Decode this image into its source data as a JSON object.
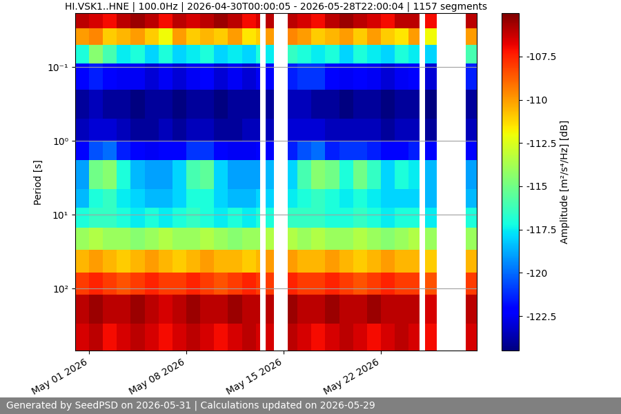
{
  "chart_data": {
    "type": "spectrogram",
    "title": "HI.VSK1..HNE | 100.0Hz | 2026-04-30T00:00:05 - 2026-05-28T22:00:04 | 1157 segments",
    "y_label": "Period [s]",
    "footer": "Generated by SeedPSD on 2026-05-31 | Calculations updated on 2026-05-29",
    "log": "y",
    "grid": true,
    "color": "jet",
    "xlim": [
      "2026-04-30T00:00:05",
      "2026-05-28T22:00:04"
    ],
    "xticks": [
      {
        "value": "2026-05-01",
        "label": "May 01 2026"
      },
      {
        "value": "2026-05-08",
        "label": "May 08 2026"
      },
      {
        "value": "2026-05-15",
        "label": "May 15 2026"
      },
      {
        "value": "2026-05-22",
        "label": "May 22 2026"
      }
    ],
    "ylim": [
      690,
      0.0186
    ],
    "yticks": [
      {
        "value": 0.1,
        "label": "10⁻¹"
      },
      {
        "value": 1,
        "label": "10⁰"
      },
      {
        "value": 10,
        "label": "10¹"
      },
      {
        "value": 100,
        "label": "10²"
      }
    ],
    "time_edges": [
      "2026-04-30T00:00:05",
      "2026-05-01",
      "2026-05-02",
      "2026-05-03",
      "2026-05-04",
      "2026-05-05",
      "2026-05-06",
      "2026-05-07",
      "2026-05-08",
      "2026-05-09",
      "2026-05-10",
      "2026-05-11",
      "2026-05-12",
      "2026-05-13",
      "2026-05-13T08:00",
      "2026-05-13T17:00",
      "2026-05-14T07:00",
      "2026-05-15T07:00",
      "2026-05-16",
      "2026-05-17",
      "2026-05-18",
      "2026-05-19",
      "2026-05-20",
      "2026-05-21",
      "2026-05-22",
      "2026-05-23",
      "2026-05-24",
      "2026-05-24T19:00",
      "2026-05-25T04:00",
      "2026-05-26T01:00",
      "2026-05-28T03:00",
      "2026-05-28T22:00:04"
    ],
    "period_edges": [
      0.0186,
      0.03,
      0.05,
      0.09,
      0.2,
      0.5,
      1.0,
      1.8,
      4.5,
      8,
      15,
      30,
      60,
      120,
      300,
      690
    ],
    "cells": [
      [
        -106,
        -106.5,
        -107,
        -106,
        -105.5,
        -106,
        -107,
        -106,
        -106.5,
        -106,
        -105.5,
        -106,
        -107,
        -106.5,
        null,
        -106,
        null,
        -106,
        -106.5,
        -107,
        -106,
        -105.5,
        -106,
        -106.5,
        -107,
        -106,
        -106,
        null,
        -107,
        null,
        -106
      ],
      [
        -110,
        -109.5,
        -111,
        -110.5,
        -110,
        -111,
        -112,
        -110,
        -111,
        -110.5,
        -111,
        -110,
        -111.5,
        -111,
        null,
        -110,
        null,
        -109.5,
        -110,
        -111,
        -110.5,
        -110,
        -111,
        -110,
        -111,
        -111.5,
        -110,
        null,
        -112,
        null,
        -110
      ],
      [
        -117,
        -114.5,
        -116,
        -117.5,
        -117,
        -118,
        -117,
        -118,
        -117.5,
        -117,
        -118,
        -117.5,
        -118,
        -117,
        null,
        -117.5,
        null,
        -116.5,
        -117,
        -117.5,
        -117,
        -118,
        -117,
        -117.5,
        -118,
        -117,
        -117.5,
        null,
        -118,
        null,
        -116
      ],
      [
        -122,
        -121.5,
        -122,
        -122.5,
        -122.5,
        -123,
        -122.5,
        -123,
        -122.5,
        -122,
        -123,
        -122.5,
        -123,
        -122.5,
        null,
        -122,
        null,
        -121.5,
        -121,
        -121,
        -122,
        -122.5,
        -122,
        -122.5,
        -123,
        -122.5,
        -122,
        null,
        -123,
        null,
        -121.5
      ],
      [
        -124,
        -123.5,
        -124,
        -124,
        -124.5,
        -124,
        -124,
        -124.5,
        -124,
        -124,
        -124.5,
        -124,
        -124,
        -124,
        null,
        -124,
        null,
        -123.5,
        -123.5,
        -124,
        -124,
        -124.5,
        -124,
        -124,
        -124.5,
        -124,
        -124,
        null,
        -124.5,
        null,
        -124
      ],
      [
        -123.5,
        -123,
        -123,
        -123.5,
        -124,
        -124,
        -123.5,
        -124,
        -123.5,
        -123.5,
        -124,
        -124,
        -123.5,
        -123.5,
        null,
        -123.5,
        null,
        -123,
        -123,
        -123,
        -123.5,
        -123.5,
        -123.5,
        -123.5,
        -124,
        -123.5,
        -123.5,
        null,
        -124,
        null,
        -123.5
      ],
      [
        -122,
        -120.5,
        -120,
        -121.5,
        -122,
        -122.5,
        -122,
        -122,
        -121,
        -121,
        -122,
        -122.5,
        -122.5,
        -122,
        null,
        -122,
        null,
        -121.5,
        -120.5,
        -120,
        -121.5,
        -121,
        -121,
        -121.5,
        -122,
        -122,
        -121.5,
        null,
        -122,
        null,
        -122
      ],
      [
        -119,
        -115,
        -114.5,
        -117,
        -118.5,
        -119,
        -119,
        -118,
        -116,
        -115.5,
        -118,
        -119,
        -119,
        -119,
        null,
        -118.5,
        null,
        -118,
        -116,
        -114.5,
        -115,
        -117,
        -115,
        -116.5,
        -118,
        -117,
        -117.5,
        null,
        -118.5,
        null,
        -119
      ],
      [
        -118.5,
        -117,
        -116.5,
        -117.5,
        -118,
        -118.5,
        -118.5,
        -118,
        -117,
        -117,
        -118,
        -118.5,
        -118.5,
        -118,
        null,
        -118,
        null,
        -117.5,
        -117,
        -116.5,
        -117,
        -117.5,
        -117,
        -117.5,
        -118,
        -118,
        -118,
        null,
        -118.5,
        null,
        -118.5
      ],
      [
        -117,
        -116.5,
        -116.5,
        -117,
        -117.5,
        -117,
        -117.5,
        -117,
        -116.5,
        -117,
        -117.5,
        -117,
        -117.5,
        -117,
        null,
        -117,
        null,
        -116.5,
        -116.5,
        -116.5,
        -117,
        -117,
        -116.5,
        -117,
        -117.5,
        -117,
        -117,
        null,
        -117.5,
        null,
        -117
      ],
      [
        -114,
        -113.5,
        -114,
        -114,
        -114.5,
        -114,
        -113.5,
        -114,
        -114,
        -113.5,
        -114,
        -114.5,
        -114,
        -114,
        null,
        -113.5,
        null,
        -113.5,
        -114,
        -113.5,
        -114,
        -114,
        -113.5,
        -114,
        -114.5,
        -114,
        -113.5,
        null,
        -114,
        null,
        -114
      ],
      [
        -110.5,
        -110,
        -110.5,
        -111,
        -110.5,
        -110,
        -110.5,
        -111,
        -110.5,
        -110,
        -110.5,
        -110.5,
        -111,
        -110.5,
        null,
        -110,
        null,
        -110,
        -110.5,
        -110.5,
        -110,
        -110.5,
        -111,
        -110.5,
        -110,
        -110.5,
        -110.5,
        null,
        -111,
        null,
        -110.5
      ],
      [
        -108,
        -107.5,
        -108,
        -108.5,
        -108,
        -107.5,
        -108,
        -108,
        -107.5,
        -108,
        -108.5,
        -108,
        -107.5,
        -108,
        null,
        -108,
        null,
        -107.5,
        -108,
        -108,
        -107.5,
        -108,
        -108.5,
        -108,
        -107.5,
        -108,
        -108,
        null,
        -108.5,
        null,
        -108
      ],
      [
        -106,
        -105.5,
        -106,
        -106,
        -105.5,
        -106,
        -106.5,
        -106,
        -105.5,
        -106,
        -106,
        -105.5,
        -106,
        -106,
        null,
        -106,
        null,
        -105.5,
        -106,
        -106,
        -105.5,
        -106,
        -106,
        -105.5,
        -106,
        -106,
        -106,
        null,
        -106.5,
        null,
        -106
      ],
      [
        -106.5,
        -106,
        -107,
        -106.5,
        -106,
        -106.5,
        -107,
        -106.5,
        -106,
        -106.5,
        -107,
        -106.5,
        -106,
        -106.5,
        null,
        -106.5,
        null,
        -106,
        -106.5,
        -107,
        -106.5,
        -106,
        -106.5,
        -107,
        -106.5,
        -106,
        -106.5,
        null,
        -107,
        null,
        -106.5
      ]
    ],
    "colorbar": {
      "label": "Amplitude [m²/s⁴/Hz] [dB]",
      "range": [
        -124.5,
        -105
      ],
      "ticks": [
        -107.5,
        -110,
        -112.5,
        -115,
        -117.5,
        -120,
        -122.5
      ]
    }
  }
}
